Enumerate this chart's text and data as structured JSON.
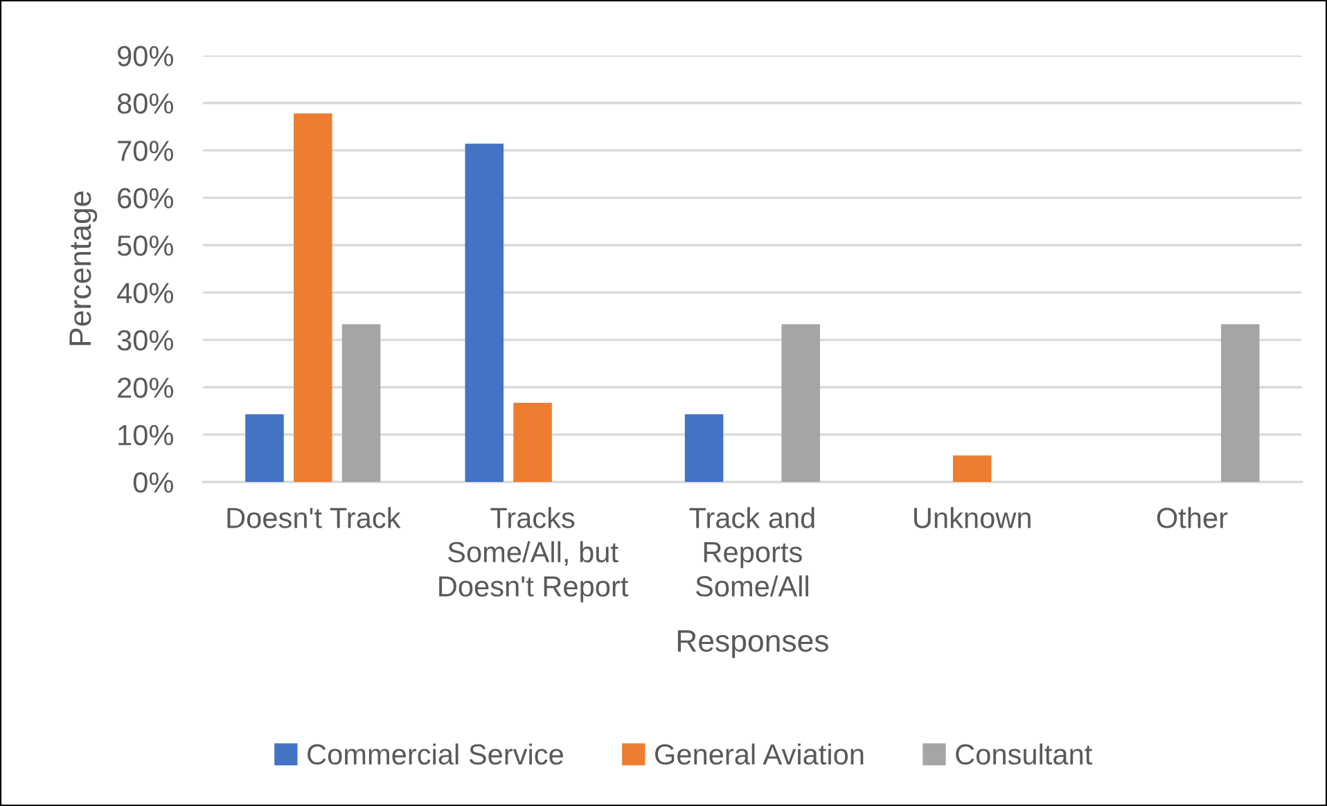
{
  "chart_data": {
    "type": "bar",
    "xlabel": "Responses",
    "ylabel": "Percentage",
    "categories": [
      "Doesn't Track",
      "Tracks\nSome/All, but\nDoesn't Report",
      "Track and\nReports\nSome/All",
      "Unknown",
      "Other"
    ],
    "series": [
      {
        "name": "Commercial Service",
        "color": "#4472c4",
        "values": [
          14.3,
          71.4,
          14.3,
          null,
          null
        ]
      },
      {
        "name": "General Aviation",
        "color": "#ed7d31",
        "values": [
          77.8,
          16.7,
          null,
          5.6,
          null
        ]
      },
      {
        "name": "Consultant",
        "color": "#a5a5a5",
        "values": [
          33.3,
          null,
          33.3,
          null,
          33.3
        ]
      }
    ],
    "ylim": [
      0,
      90
    ],
    "yticks": [
      {
        "value": 0,
        "label": "0%"
      },
      {
        "value": 10,
        "label": "10%"
      },
      {
        "value": 20,
        "label": "20%"
      },
      {
        "value": 30,
        "label": "30%"
      },
      {
        "value": 40,
        "label": "40%"
      },
      {
        "value": 50,
        "label": "50%"
      },
      {
        "value": 60,
        "label": "60%"
      },
      {
        "value": 70,
        "label": "70%"
      },
      {
        "value": 80,
        "label": "80%"
      },
      {
        "value": 90,
        "label": "90%"
      }
    ],
    "grid": "y",
    "legend": "bottom"
  }
}
